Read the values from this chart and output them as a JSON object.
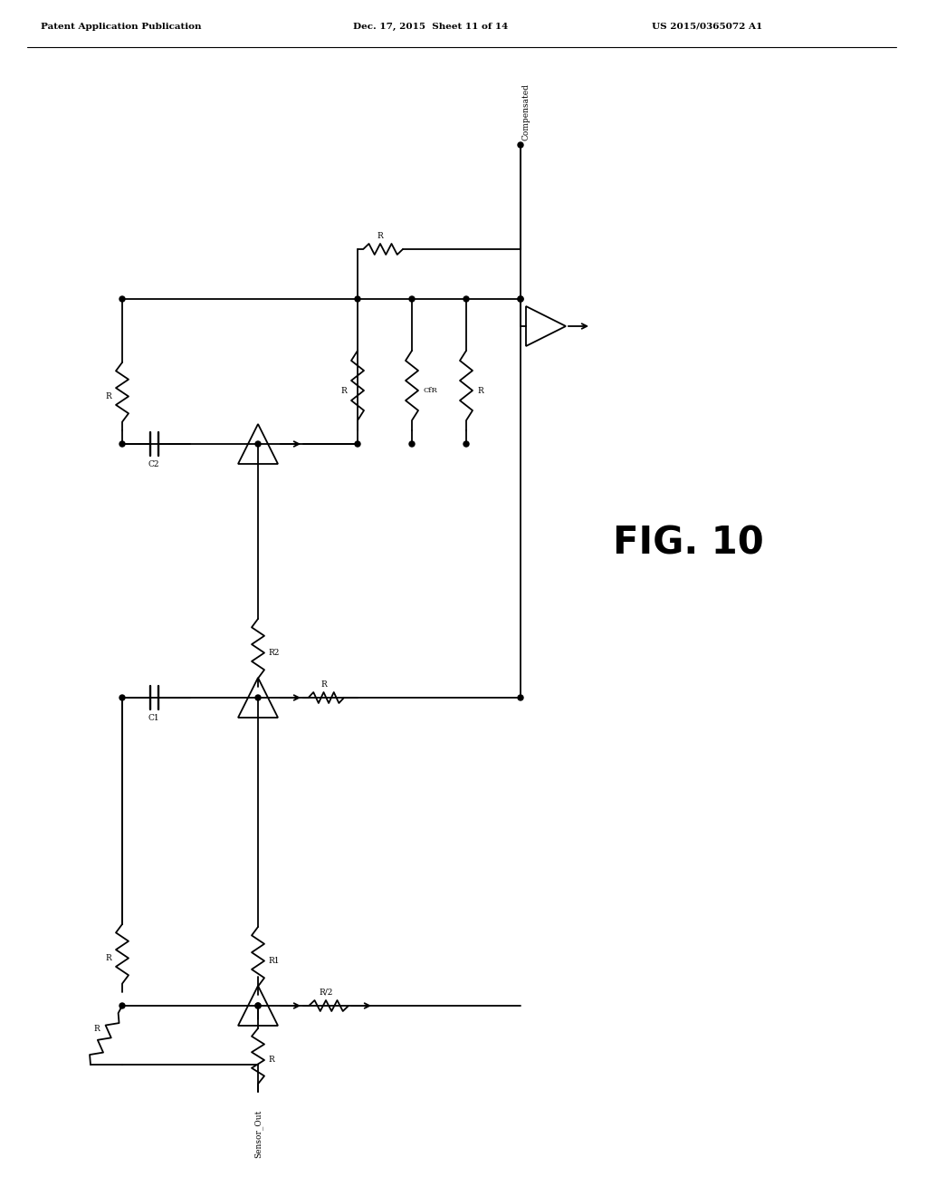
{
  "title": "FIG. 10",
  "header_left": "Patent Application Publication",
  "header_center": "Dec. 17, 2015  Sheet 11 of 14",
  "header_right": "US 2015/0365072 A1",
  "background_color": "#ffffff",
  "line_color": "#000000",
  "label_sensor_out": "Sensor_Out",
  "label_compensated": "Compensated",
  "label_r_half": "R/2",
  "label_R": "R",
  "label_R1": "R1",
  "label_R2": "R2",
  "label_C1": "C1",
  "label_C2": "C2",
  "label_CfR": "CfR"
}
